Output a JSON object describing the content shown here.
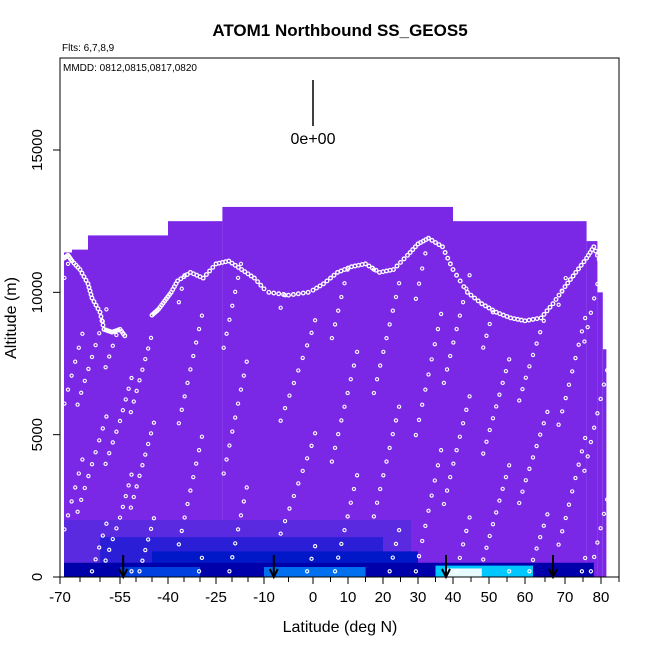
{
  "chart_data": {
    "type": "heatmap",
    "title": "ATOM1 Northbound SS_GEOS5",
    "subtitle_flights": "Flts: 6,7,8,9",
    "subtitle_dates": "MMDD: 0812,0815,0817,0820",
    "xlabel": "Latitude (deg N)",
    "ylabel": "Altitude (m)",
    "xlim": [
      -70,
      85
    ],
    "ylim": [
      0,
      18000
    ],
    "x_tick_labels": [
      "-70",
      "-55",
      "-40",
      "-25",
      "-10",
      "0",
      "10",
      "20",
      "30",
      "40",
      "50",
      "60",
      "70",
      "80"
    ],
    "x_tick_values": [
      -70,
      -55,
      -40,
      -25,
      -10,
      0,
      10,
      20,
      30,
      40,
      50,
      60,
      70,
      80
    ],
    "y_tick_labels": [
      "0",
      "5000",
      "10000",
      "15000"
    ],
    "y_tick_values": [
      0,
      5000,
      10000,
      15000
    ],
    "legend_value_label": "0e+00",
    "colors": {
      "background_field": "#7a28e6",
      "low_blue": "#1a1ad9",
      "dark_blue": "#0000aa",
      "bright_cyan": "#00c8ff",
      "highlight": "#e6faff",
      "markers": "#ffffff",
      "arrows": "#000000"
    },
    "field_columns": [
      {
        "x0": -69,
        "x1": -67,
        "top": 11400
      },
      {
        "x0": -67,
        "x1": -63,
        "top": 11500
      },
      {
        "x0": -63,
        "x1": -40,
        "top": 12000
      },
      {
        "x0": -40,
        "x1": -23,
        "top": 12500
      },
      {
        "x0": -23,
        "x1": 40,
        "top": 13000
      },
      {
        "x0": 40,
        "x1": 76,
        "top": 12500
      },
      {
        "x0": 76,
        "x1": 79,
        "top": 11800
      },
      {
        "x0": 79,
        "x1": 80.5,
        "top": 10000
      },
      {
        "x0": 80.5,
        "x1": 81.5,
        "top": 8000
      }
    ],
    "enhanced_cells": [
      {
        "x0": -69,
        "x1": 28,
        "y0": 0,
        "y1": 2000,
        "level": 0.25
      },
      {
        "x0": -60,
        "x1": 20,
        "y0": 0,
        "y1": 1400,
        "level": 0.45
      },
      {
        "x0": -45,
        "x1": 30,
        "y0": 0,
        "y1": 900,
        "level": 0.65
      },
      {
        "x0": -69,
        "x1": 78,
        "y0": 0,
        "y1": 500,
        "level": 0.55
      },
      {
        "x0": -55,
        "x1": -30,
        "y0": 0,
        "y1": 350,
        "level": 0.75
      },
      {
        "x0": -10,
        "x1": 15,
        "y0": 0,
        "y1": 350,
        "level": 0.8
      },
      {
        "x0": 35,
        "x1": 62,
        "y0": 0,
        "y1": 400,
        "level": 0.9
      },
      {
        "x0": 38,
        "x1": 48,
        "y0": 0,
        "y1": 300,
        "level": 1.0
      }
    ],
    "flight_tracks": [
      {
        "points": [
          [
            -69,
            11200
          ],
          [
            -68,
            11300
          ],
          [
            -67,
            11100
          ],
          [
            -65,
            10800
          ],
          [
            -63,
            10300
          ],
          [
            -62,
            9800
          ],
          [
            -60,
            9300
          ],
          [
            -59,
            8700
          ],
          [
            -57,
            8600
          ],
          [
            -55,
            8700
          ],
          [
            -53,
            8400
          ]
        ]
      },
      {
        "points": [
          [
            -45,
            9200
          ],
          [
            -43,
            9400
          ],
          [
            -41,
            9700
          ],
          [
            -39,
            10000
          ],
          [
            -37,
            10400
          ],
          [
            -33,
            10700
          ],
          [
            -29,
            10500
          ],
          [
            -25,
            11000
          ],
          [
            -21,
            11100
          ],
          [
            -17,
            10800
          ],
          [
            -13,
            10500
          ],
          [
            -9,
            10000
          ],
          [
            -5,
            9900
          ],
          [
            -1,
            10000
          ],
          [
            3,
            10300
          ],
          [
            7,
            10700
          ],
          [
            11,
            10900
          ],
          [
            15,
            11000
          ],
          [
            19,
            10700
          ],
          [
            23,
            10800
          ],
          [
            27,
            11300
          ],
          [
            30,
            11700
          ],
          [
            33,
            11900
          ],
          [
            37,
            11600
          ],
          [
            40,
            10800
          ],
          [
            44,
            10000
          ],
          [
            48,
            9600
          ],
          [
            52,
            9300
          ],
          [
            56,
            9100
          ],
          [
            60,
            9000
          ],
          [
            64,
            9100
          ],
          [
            67,
            9600
          ],
          [
            70,
            10200
          ],
          [
            73,
            10700
          ],
          [
            76,
            11200
          ],
          [
            78,
            11600
          ],
          [
            80,
            11000
          ]
        ]
      }
    ],
    "profile_markers": [
      {
        "x": -68,
        "y0": 200,
        "y1": 11000
      },
      {
        "x": -62,
        "y0": 200,
        "y1": 9400
      },
      {
        "x": -55,
        "y0": 200,
        "y1": 8500
      },
      {
        "x": -48,
        "y0": 200,
        "y1": 8400
      },
      {
        "x": -33,
        "y0": 200,
        "y1": 10600
      },
      {
        "x": -19,
        "y0": 200,
        "y1": 11000
      },
      {
        "x": -3,
        "y0": 200,
        "y1": 9900
      },
      {
        "x": 9,
        "y0": 200,
        "y1": 10800
      },
      {
        "x": 21,
        "y0": 200,
        "y1": 10800
      },
      {
        "x": 33,
        "y0": 200,
        "y1": 11900
      },
      {
        "x": 41,
        "y0": 200,
        "y1": 10600
      },
      {
        "x": 52,
        "y0": 200,
        "y1": 9300
      },
      {
        "x": 62,
        "y0": 200,
        "y1": 9000
      },
      {
        "x": 72,
        "y0": 200,
        "y1": 10500
      },
      {
        "x": 79,
        "y0": 200,
        "y1": 11300
      }
    ],
    "arrows_latitude": [
      -54,
      -8,
      38,
      67
    ]
  }
}
